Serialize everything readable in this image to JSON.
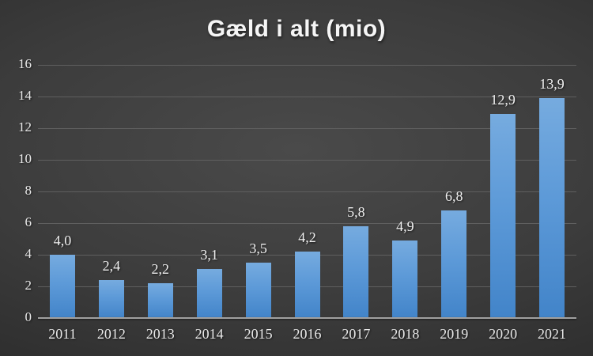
{
  "chart_data": {
    "type": "bar",
    "title": "Gæld i alt (mio)",
    "categories": [
      "2011",
      "2012",
      "2013",
      "2014",
      "2015",
      "2016",
      "2017",
      "2018",
      "2019",
      "2020",
      "2021"
    ],
    "values": [
      4.0,
      2.4,
      2.2,
      3.1,
      3.5,
      4.2,
      5.8,
      4.9,
      6.8,
      12.9,
      13.9
    ],
    "value_labels": [
      "4,0",
      "2,4",
      "2,2",
      "3,1",
      "3,5",
      "4,2",
      "5,8",
      "4,9",
      "6,8",
      "12,9",
      "13,9"
    ],
    "xlabel": "",
    "ylabel": "",
    "y_ticks": [
      0,
      2,
      4,
      6,
      8,
      10,
      12,
      14,
      16
    ],
    "ylim": [
      0,
      16
    ],
    "grid": true,
    "legend_position": "none",
    "decimal_separator": ",",
    "colors": {
      "bar_top": "#76abdf",
      "bar_bottom": "#4284c9",
      "gridline": "#5f5f5f",
      "axis_line": "#a0a0a0",
      "tick_text": "#e8e8e8",
      "title_text": "#f5f5f5",
      "background_center": "#4a4a4a",
      "background_edge": "#232323"
    }
  }
}
